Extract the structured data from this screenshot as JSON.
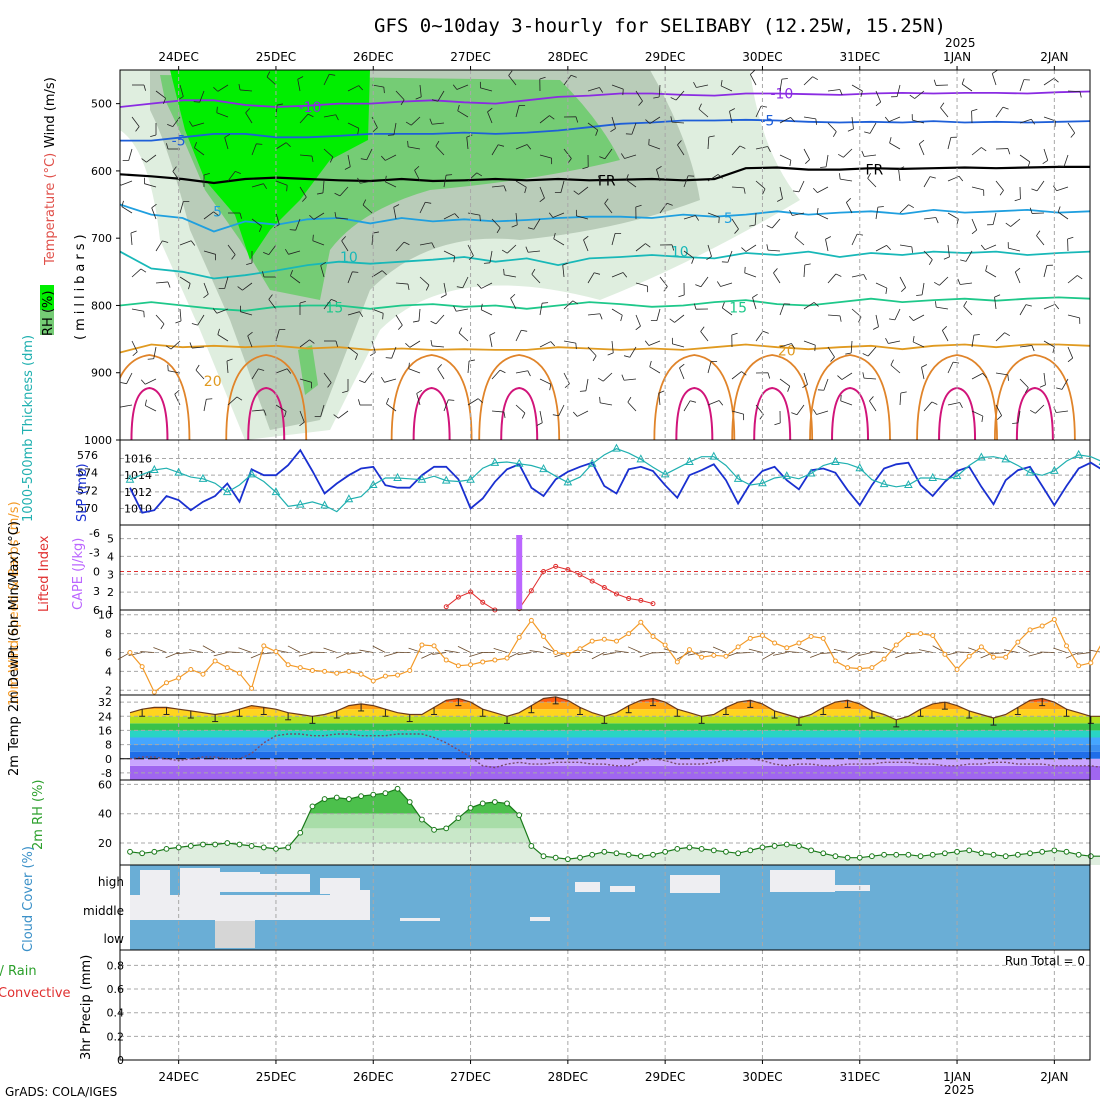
{
  "title": "GFS 0~10day 3-hourly for SELIBABY (12.25W, 15.25N)",
  "credit": "GrADS: COLA/IGES",
  "top_year": "2025",
  "bottom_year": "2025",
  "run_total": "Run Total = 0",
  "colors": {
    "rh_green": "#00ee00",
    "rh_mid": "#75cc75",
    "rh_light": "#dfeedf",
    "temp_purple": "#8a2be2",
    "temp_blue": "#1e5fd8",
    "temp_cyan": "#1f9fdf",
    "temp_teal": "#18b8b8",
    "temp_green": "#1ec88a",
    "temp_orange": "#e09a20",
    "slp": "#1a30d0",
    "thickness": "#20b0b0",
    "lifted": "#e03030",
    "cape": "#bb66ff",
    "wind": "#f39a28",
    "cloud": "#6aaed6",
    "precip_total": "#2ca02c",
    "precip_conv": "#e03030"
  },
  "chart_data": [
    {
      "id": "profile",
      "type": "heatmap",
      "ylabel_parts": [
        "RH (%)",
        "Temperature (°C)",
        "Wind (m/s)",
        "(millibars)"
      ],
      "yticks": [
        "500",
        "600",
        "700",
        "800",
        "900",
        "1000"
      ],
      "ylim": [
        1000,
        450
      ],
      "x_dates": [
        "24DEC",
        "25DEC",
        "26DEC",
        "27DEC",
        "28DEC",
        "29DEC",
        "30DEC",
        "31DEC",
        "1JAN",
        "2JAN"
      ],
      "isotherm_labels": [
        {
          "value": "-10",
          "x": 1.85,
          "p": 505
        },
        {
          "value": "-10",
          "x": 6.7,
          "p": 485
        },
        {
          "value": "-5",
          "x": 0.5,
          "p": 555
        },
        {
          "value": "-5",
          "x": 6.55,
          "p": 525
        },
        {
          "value": "FR",
          "x": 4.9,
          "p": 614
        },
        {
          "value": "FR",
          "x": 7.65,
          "p": 598
        },
        {
          "value": "5",
          "x": 0.9,
          "p": 660
        },
        {
          "value": "5",
          "x": 6.15,
          "p": 670
        },
        {
          "value": "10",
          "x": 2.25,
          "p": 728
        },
        {
          "value": "10",
          "x": 5.65,
          "p": 720
        },
        {
          "value": "15",
          "x": 2.1,
          "p": 803
        },
        {
          "value": "15",
          "x": 6.25,
          "p": 803
        },
        {
          "value": "20",
          "x": 0.85,
          "p": 912
        },
        {
          "value": "20",
          "x": 6.75,
          "p": 867
        }
      ],
      "isotherms": [
        {
          "value": -10,
          "color": "temp_purple",
          "p": [
            505,
            500,
            495,
            495,
            502,
            505,
            503,
            500,
            500,
            497,
            495,
            498,
            500,
            495,
            490,
            488,
            485,
            485,
            487,
            488,
            485,
            485,
            486,
            487,
            485,
            484,
            485,
            484,
            484,
            485,
            483,
            482
          ]
        },
        {
          "value": -5,
          "color": "temp_blue",
          "p": [
            555,
            555,
            550,
            545,
            545,
            550,
            550,
            548,
            545,
            545,
            545,
            543,
            545,
            543,
            540,
            535,
            530,
            528,
            525,
            525,
            524,
            525,
            527,
            528,
            527,
            528,
            526,
            528,
            527,
            528,
            527,
            526
          ]
        },
        {
          "value": 0,
          "color": "#000000",
          "p": [
            605,
            608,
            612,
            618,
            612,
            610,
            612,
            614,
            615,
            612,
            615,
            614,
            612,
            614,
            612,
            614,
            613,
            612,
            614,
            612,
            596,
            595,
            598,
            598,
            596,
            597,
            596,
            595,
            596,
            595,
            594,
            594
          ]
        },
        {
          "value": 5,
          "color": "temp_cyan",
          "p": [
            650,
            665,
            670,
            690,
            675,
            680,
            672,
            670,
            678,
            670,
            675,
            672,
            675,
            673,
            670,
            668,
            668,
            670,
            665,
            668,
            665,
            660,
            665,
            662,
            660,
            664,
            658,
            662,
            660,
            658,
            662,
            660
          ]
        },
        {
          "value": 10,
          "color": "temp_teal",
          "p": [
            720,
            745,
            750,
            760,
            755,
            748,
            740,
            735,
            738,
            735,
            732,
            728,
            735,
            730,
            740,
            730,
            728,
            725,
            728,
            730,
            722,
            725,
            720,
            728,
            722,
            725,
            720,
            722,
            720,
            725,
            722,
            720
          ]
        },
        {
          "value": 15,
          "color": "temp_green",
          "p": [
            800,
            795,
            800,
            805,
            808,
            802,
            800,
            800,
            805,
            800,
            798,
            802,
            800,
            805,
            800,
            795,
            798,
            802,
            800,
            795,
            792,
            798,
            800,
            795,
            790,
            795,
            792,
            790,
            793,
            790,
            788,
            790
          ]
        },
        {
          "value": 20,
          "color": "temp_orange",
          "p": [
            870,
            858,
            862,
            860,
            862,
            860,
            864,
            862,
            866,
            864,
            866,
            865,
            866,
            866,
            862,
            864,
            866,
            864,
            866,
            862,
            858,
            862,
            865,
            862,
            860,
            865,
            860,
            858,
            862,
            858,
            858,
            860
          ]
        }
      ]
    },
    {
      "id": "thickness_slp",
      "type": "line",
      "ylabel_left": "1000-500mb Thickness (dm)",
      "ylabel_right": "SLP (mb)",
      "left_ticks": [
        "576",
        "574",
        "572",
        "570"
      ],
      "right_ticks": [
        "1016",
        "1014",
        "1012",
        "1010"
      ],
      "ylim_left": [
        569,
        577
      ],
      "ylim_right": [
        1008.5,
        1017.5
      ],
      "series": [
        {
          "name": "SLP",
          "axis": "right",
          "values": [
            1012.5,
            1009.5,
            1009.8,
            1011.5,
            1011,
            1009.8,
            1010.8,
            1011.5,
            1013,
            1010.8,
            1014.7,
            1014,
            1014,
            1015.2,
            1017,
            1014.5,
            1011.8,
            1013,
            1014,
            1014.8,
            1015,
            1012.8,
            1012.5,
            1012.5,
            1014,
            1015,
            1015,
            1013.5,
            1010,
            1011.2,
            1013.2,
            1014.7,
            1015.3,
            1012.5,
            1011.5,
            1013.5,
            1014.4,
            1015,
            1015.5,
            1012.7,
            1011.8,
            1014.7,
            1015,
            1014.5,
            1012.8,
            1011.3,
            1014,
            1014.6,
            1015.3,
            1013.4,
            1010.6,
            1013,
            1014.5,
            1015,
            1013.4,
            1012.3,
            1014.6,
            1014.8,
            1014.3,
            1012.2,
            1010.4,
            1012.8,
            1014.8,
            1015.3,
            1015.5,
            1012.8,
            1011.5,
            1013.2,
            1014.5,
            1015,
            1012.6,
            1010.5,
            1013.4,
            1014.6,
            1015,
            1012.7,
            1010.4,
            1012.7,
            1014.8,
            1015.5,
            1014.6,
            1011.8,
            1012.5
          ]
        },
        {
          "name": "Thickness",
          "axis": "left",
          "values": [
            573.2,
            573.8,
            574.3,
            574.5,
            574,
            573.5,
            573.3,
            572.8,
            571.8,
            572.6,
            573.8,
            573,
            571.8,
            570.2,
            570.4,
            570.7,
            570.3,
            569.6,
            571,
            571.3,
            572.6,
            573.4,
            573.4,
            573.3,
            573.2,
            573.6,
            573.1,
            573,
            573.2,
            574.5,
            575.1,
            575.2,
            575,
            574.8,
            574.4,
            573.6,
            572.9,
            573.5,
            575,
            576,
            576.7,
            576.2,
            575.5,
            574.6,
            573.8,
            574.5,
            575.2,
            575.8,
            575.8,
            574.8,
            573.3,
            572.6,
            572.8,
            573.4,
            573.6,
            573.3,
            573.9,
            574.8,
            575.2,
            575,
            574.5,
            573.2,
            572.7,
            572.4,
            572.6,
            573.4,
            573.4,
            573.2,
            573.6,
            574.8,
            575.7,
            575.8,
            575.5,
            574.8,
            574,
            573.7,
            574.2,
            575.3,
            576,
            575.8,
            575.2,
            574.6,
            574.5
          ]
        }
      ]
    },
    {
      "id": "lifted_cape",
      "type": "line",
      "ylabel_left": "Lifted Index",
      "ylabel_right": "CAPE (J/kg)",
      "left_ticks": [
        "-6",
        "-3",
        "0",
        "3",
        "6"
      ],
      "right_ticks": [
        "5",
        "4",
        "3",
        "2",
        "1"
      ],
      "ylim_left": [
        -6,
        6
      ],
      "ylim_right": [
        1,
        5.2
      ],
      "lifted_index_reference": 0,
      "series": [
        {
          "name": "Lifted Index",
          "axis": "left",
          "values": [
            null,
            null,
            null,
            null,
            null,
            null,
            null,
            null,
            null,
            null,
            null,
            null,
            null,
            null,
            null,
            null,
            null,
            null,
            null,
            null,
            null,
            null,
            null,
            null,
            null,
            null,
            5.5,
            4,
            3.2,
            4.8,
            6,
            null,
            5.8,
            3,
            0,
            -0.8,
            -0.3,
            0.5,
            1.5,
            2.5,
            3.5,
            4.2,
            4.5,
            5,
            null
          ]
        },
        {
          "name": "CAPE",
          "axis": "right",
          "bar_index": 32,
          "bar_value": 5.2
        }
      ]
    },
    {
      "id": "wind10m",
      "type": "line",
      "ylabel_left": "10m Wind Speed & Barbs (m/s)",
      "left_ticks": [
        "10",
        "8",
        "6",
        "4",
        "2"
      ],
      "ylim_left": [
        1.5,
        10.5
      ],
      "series": [
        {
          "name": "10m Wind Speed",
          "values": [
            6,
            4.5,
            1.8,
            2.8,
            3.3,
            4.2,
            3.7,
            5.1,
            4.4,
            3.8,
            2.2,
            6.7,
            6.1,
            4.7,
            4.4,
            4.1,
            4,
            3.8,
            4,
            3.7,
            3,
            3.5,
            3.6,
            4.1,
            6.8,
            6.7,
            5.2,
            4.6,
            4.7,
            5,
            5.2,
            5.4,
            7.6,
            9.4,
            7.7,
            6,
            5.8,
            6.4,
            7.2,
            7.4,
            7.2,
            8,
            9.2,
            7.7,
            6.8,
            5,
            6.3,
            5.5,
            5.7,
            5.6,
            6.6,
            7.5,
            7.8,
            7,
            6.5,
            7,
            7.7,
            7.5,
            5.1,
            4.4,
            4.3,
            4.4,
            5.3,
            6.8,
            7.9,
            8,
            7.8,
            5.8,
            4.2,
            5.6,
            6.6,
            5.5,
            5.5,
            7.1,
            8.4,
            8.8,
            9.5,
            6.7,
            4.6,
            4.9,
            7.2,
            8.2,
            8.9
          ]
        }
      ]
    },
    {
      "id": "temp2m",
      "type": "area",
      "ylabel_left": "2m Temp 2m DewPt (6hr Min/Max) (°C)",
      "left_ticks": [
        "32",
        "24",
        "16",
        "8",
        "0",
        "-8"
      ],
      "ylim_left": [
        -12,
        36
      ],
      "series": [
        {
          "name": "2m Temp",
          "values": [
            26,
            28,
            29,
            29,
            28,
            27,
            26,
            25,
            26,
            28,
            30,
            29,
            28,
            26,
            25,
            24,
            25,
            27,
            30,
            31,
            30,
            28,
            26,
            25,
            25,
            29,
            33,
            34,
            32,
            28,
            26,
            24,
            26,
            30,
            34,
            35,
            33,
            29,
            26,
            24,
            26,
            30,
            33,
            34,
            32,
            28,
            26,
            24,
            25,
            29,
            32,
            33,
            31,
            27,
            25,
            23,
            25,
            29,
            32,
            33,
            31,
            27,
            25,
            22,
            24,
            28,
            31,
            32,
            30,
            27,
            25,
            23,
            25,
            29,
            33,
            34,
            32,
            28,
            26,
            24,
            24,
            23,
            23
          ]
        },
        {
          "name": "2m DewPt",
          "values": [
            0,
            1,
            1,
            0,
            -1,
            0,
            1,
            1,
            0,
            0,
            3,
            9,
            13,
            14,
            14,
            13,
            13,
            14,
            14,
            13,
            13,
            13,
            14,
            14,
            14,
            12,
            9,
            5,
            1,
            -4,
            -5,
            -3,
            -2,
            -3,
            -3,
            -2,
            -2,
            -2,
            -3,
            -3,
            -4,
            -4,
            -1,
            0,
            -1,
            -3,
            -3,
            -3,
            -2,
            -1,
            0,
            0,
            -1,
            -3,
            -4,
            -3,
            -3,
            -4,
            -4,
            -3,
            -3,
            -3,
            -2,
            -2,
            -2,
            -3,
            -3,
            -4,
            -4,
            -3,
            -3,
            -2,
            -2,
            -3,
            -3,
            -3,
            -4,
            -4,
            -4,
            -4,
            -5,
            -5,
            -6
          ]
        }
      ]
    },
    {
      "id": "rh2m",
      "type": "line",
      "ylabel_left": "2m RH (%)",
      "left_ticks": [
        "60",
        "40",
        "20"
      ],
      "ylim_left": [
        5,
        63
      ],
      "series": [
        {
          "name": "2m RH",
          "values": [
            14,
            13,
            14,
            16,
            17,
            18,
            19,
            19,
            20,
            19,
            18,
            17,
            16,
            17,
            27,
            45,
            50,
            51,
            50,
            52,
            53,
            54,
            57,
            48,
            36,
            29,
            30,
            37,
            44,
            47,
            48,
            47,
            39,
            18,
            11,
            10,
            9,
            10,
            12,
            14,
            13,
            12,
            11,
            12,
            14,
            16,
            17,
            16,
            15,
            14,
            13,
            15,
            17,
            18,
            19,
            18,
            15,
            13,
            11,
            10,
            10,
            11,
            12,
            12,
            12,
            11,
            12,
            13,
            14,
            15,
            13,
            12,
            11,
            12,
            13,
            14,
            15,
            14,
            12,
            11,
            11,
            11,
            10
          ]
        }
      ]
    },
    {
      "id": "cloud",
      "type": "heatmap",
      "ylabel_left": "Cloud Cover (%)",
      "row_labels": [
        "high",
        "middle",
        "low"
      ]
    },
    {
      "id": "precip",
      "type": "bar",
      "ylabel_left_parts": [
        "Total / Rain",
        "Convective",
        "3hr Precip (mm)"
      ],
      "left_ticks": [
        "0.8",
        "0.6",
        "0.4",
        "0.2",
        "0"
      ],
      "ylim_left": [
        0,
        0.93
      ],
      "x_dates": [
        "24DEC",
        "25DEC",
        "26DEC",
        "27DEC",
        "28DEC",
        "29DEC",
        "30DEC",
        "31DEC",
        "1JAN",
        "2JAN"
      ]
    }
  ]
}
